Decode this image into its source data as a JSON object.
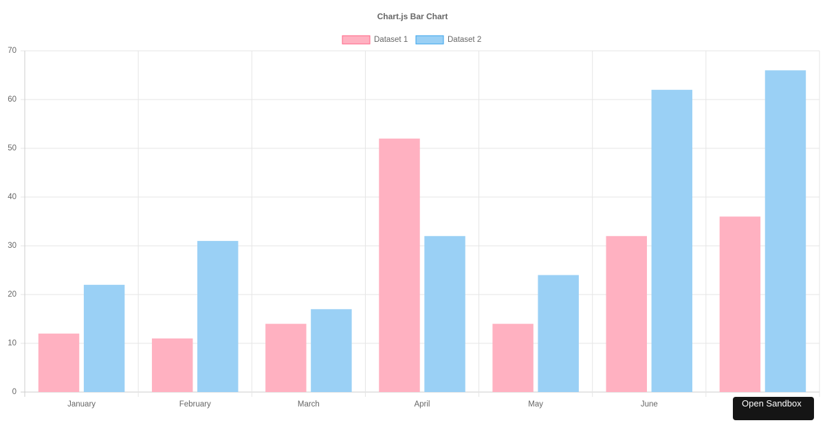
{
  "chart_data": {
    "type": "bar",
    "title": "Chart.js Bar Chart",
    "categories": [
      "January",
      "February",
      "March",
      "April",
      "May",
      "June",
      null
    ],
    "series": [
      {
        "name": "Dataset 1",
        "color": "#ffb1c1",
        "border": "#ff6384",
        "values": [
          12,
          11,
          14,
          52,
          14,
          32,
          36
        ]
      },
      {
        "name": "Dataset 2",
        "color": "#9ad0f5",
        "border": "#36a2eb",
        "values": [
          22,
          31,
          17,
          32,
          24,
          62,
          66
        ]
      }
    ],
    "ylim": [
      0,
      70
    ],
    "yticks": [
      0,
      10,
      20,
      30,
      40,
      50,
      60,
      70
    ],
    "grid": true,
    "legend": "top"
  },
  "overlay": {
    "button": "Open Sandbox"
  }
}
